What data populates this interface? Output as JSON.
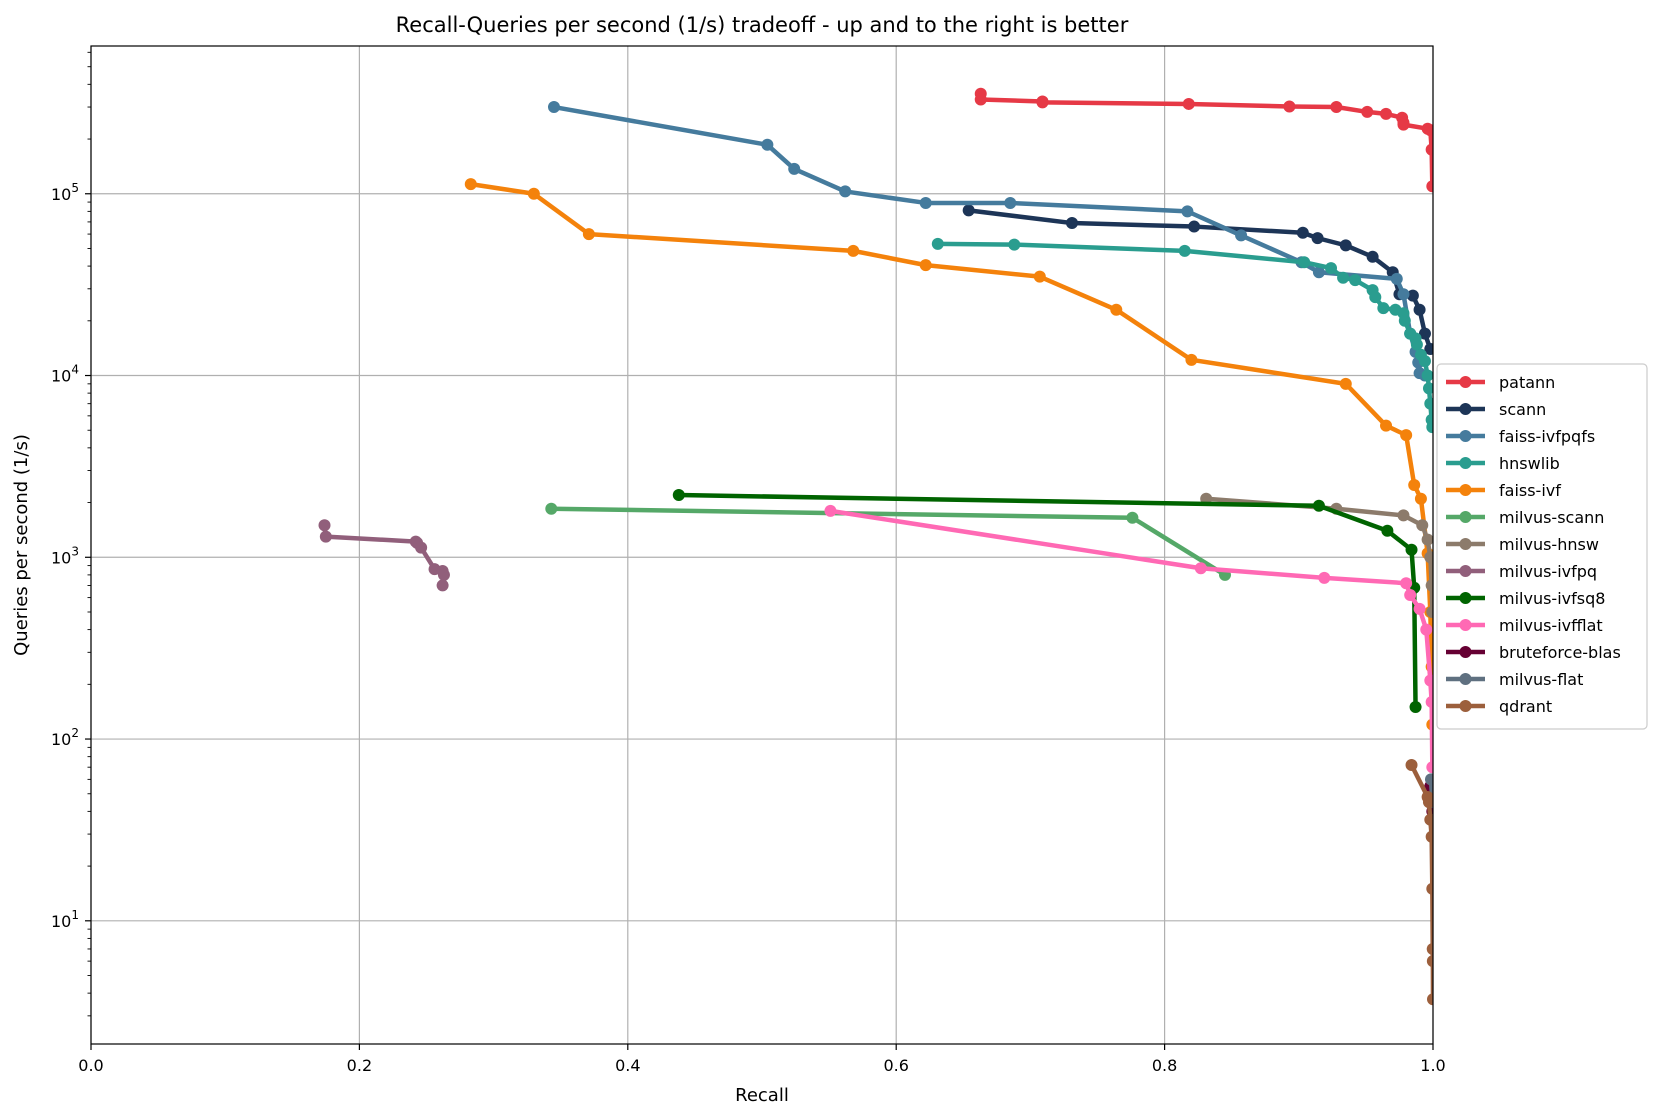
{
  "chart_data": {
    "type": "line",
    "title": "Recall-Queries per second (1/s) tradeoff - up and to the right is better",
    "xlabel": "Recall",
    "ylabel": "Queries per second (1/s)",
    "xlim": [
      0.0,
      1.0
    ],
    "ylim": [
      2.1,
      650000
    ],
    "y_scale": "log",
    "grid": true,
    "legend_position": "right",
    "x_ticks": [
      {
        "value": 0.0,
        "label": "0.0"
      },
      {
        "value": 0.2,
        "label": "0.2"
      },
      {
        "value": 0.4,
        "label": "0.4"
      },
      {
        "value": 0.6,
        "label": "0.6"
      },
      {
        "value": 0.8,
        "label": "0.8"
      },
      {
        "value": 1.0,
        "label": "1.0"
      }
    ],
    "y_ticks": [
      {
        "value": 10,
        "base": "10",
        "exp": "1"
      },
      {
        "value": 100,
        "base": "10",
        "exp": "2"
      },
      {
        "value": 1000,
        "base": "10",
        "exp": "3"
      },
      {
        "value": 10000,
        "base": "10",
        "exp": "4"
      },
      {
        "value": 100000,
        "base": "10",
        "exp": "5"
      }
    ],
    "series": [
      {
        "name": "patann",
        "color": "#e63946",
        "points": [
          [
            0.663,
            355000
          ],
          [
            0.663,
            330000
          ],
          [
            0.709,
            322000
          ],
          [
            0.709,
            318000
          ],
          [
            0.818,
            312000
          ],
          [
            0.893,
            302000
          ],
          [
            0.928,
            300000
          ],
          [
            0.951,
            282000
          ],
          [
            0.965,
            275000
          ],
          [
            0.977,
            262000
          ],
          [
            0.978,
            246000
          ],
          [
            0.978,
            240000
          ],
          [
            0.996,
            228000
          ],
          [
            0.998,
            224000
          ],
          [
            0.999,
            175000
          ],
          [
            0.9995,
            110000
          ]
        ]
      },
      {
        "name": "scann",
        "color": "#1d3557",
        "points": [
          [
            0.654,
            81000
          ],
          [
            0.731,
            69000
          ],
          [
            0.822,
            66000
          ],
          [
            0.903,
            61000
          ],
          [
            0.914,
            57000
          ],
          [
            0.935,
            52000
          ],
          [
            0.955,
            45000
          ],
          [
            0.97,
            37000
          ],
          [
            0.975,
            28000
          ],
          [
            0.985,
            27500
          ],
          [
            0.99,
            23000
          ],
          [
            0.994,
            17000
          ],
          [
            0.998,
            14000
          ]
        ]
      },
      {
        "name": "faiss-ivfpqfs",
        "color": "#457b9d",
        "points": [
          [
            0.345,
            300000
          ],
          [
            0.504,
            186000
          ],
          [
            0.524,
            137000
          ],
          [
            0.562,
            103000
          ],
          [
            0.622,
            89000
          ],
          [
            0.685,
            89000
          ],
          [
            0.817,
            80000
          ],
          [
            0.857,
            59000
          ],
          [
            0.902,
            42000
          ],
          [
            0.915,
            37000
          ],
          [
            0.973,
            34000
          ],
          [
            0.978,
            28000
          ],
          [
            0.983,
            17000
          ],
          [
            0.987,
            13500
          ],
          [
            0.989,
            11800
          ],
          [
            0.99,
            10300
          ],
          [
            0.994,
            10000
          ]
        ]
      },
      {
        "name": "hnswlib",
        "color": "#2a9d8f",
        "points": [
          [
            0.631,
            53000
          ],
          [
            0.688,
            52500
          ],
          [
            0.815,
            48500
          ],
          [
            0.904,
            42000
          ],
          [
            0.924,
            39000
          ],
          [
            0.933,
            34500
          ],
          [
            0.942,
            33500
          ],
          [
            0.955,
            29500
          ],
          [
            0.957,
            27000
          ],
          [
            0.963,
            23500
          ],
          [
            0.972,
            23000
          ],
          [
            0.978,
            22000
          ],
          [
            0.979,
            20000
          ],
          [
            0.983,
            17000
          ],
          [
            0.987,
            16000
          ],
          [
            0.988,
            14800
          ],
          [
            0.991,
            13000
          ],
          [
            0.994,
            12000
          ],
          [
            0.996,
            10000
          ],
          [
            0.997,
            8500
          ],
          [
            0.998,
            7000
          ],
          [
            0.999,
            5700
          ],
          [
            0.9995,
            5200
          ]
        ]
      },
      {
        "name": "faiss-ivf",
        "color": "#f4820b",
        "points": [
          [
            0.283,
            113000
          ],
          [
            0.33,
            100000
          ],
          [
            0.371,
            60000
          ],
          [
            0.568,
            48500
          ],
          [
            0.622,
            40500
          ],
          [
            0.707,
            35000
          ],
          [
            0.764,
            23000
          ],
          [
            0.82,
            12200
          ],
          [
            0.935,
            9000
          ],
          [
            0.965,
            5300
          ],
          [
            0.98,
            4700
          ],
          [
            0.986,
            2500
          ],
          [
            0.991,
            2100
          ],
          [
            0.996,
            1050
          ],
          [
            0.998,
            500
          ],
          [
            0.999,
            250
          ],
          [
            0.9995,
            120
          ]
        ]
      },
      {
        "name": "milvus-scann",
        "color": "#55a868",
        "points": [
          [
            0.343,
            1850
          ],
          [
            0.776,
            1650
          ],
          [
            0.845,
            800
          ]
        ]
      },
      {
        "name": "milvus-hnsw",
        "color": "#8c7b6b",
        "points": [
          [
            0.831,
            2100
          ],
          [
            0.928,
            1850
          ],
          [
            0.978,
            1700
          ],
          [
            0.992,
            1500
          ],
          [
            0.996,
            1250
          ],
          [
            0.998,
            1000
          ],
          [
            0.999,
            700
          ],
          [
            0.9995,
            500
          ]
        ]
      },
      {
        "name": "milvus-ivfpq",
        "color": "#915f7b",
        "points": [
          [
            0.174,
            1500
          ],
          [
            0.175,
            1300
          ],
          [
            0.242,
            1220
          ],
          [
            0.243,
            1200
          ],
          [
            0.246,
            1130
          ],
          [
            0.256,
            860
          ],
          [
            0.262,
            840
          ],
          [
            0.263,
            800
          ],
          [
            0.262,
            700
          ]
        ]
      },
      {
        "name": "milvus-ivfsq8",
        "color": "#006400",
        "points": [
          [
            0.438,
            2200
          ],
          [
            0.915,
            1920
          ],
          [
            0.966,
            1400
          ],
          [
            0.984,
            1100
          ],
          [
            0.986,
            680
          ],
          [
            0.987,
            150
          ]
        ]
      },
      {
        "name": "milvus-ivfflat",
        "color": "#ff69b4",
        "points": [
          [
            0.551,
            1800
          ],
          [
            0.827,
            870
          ],
          [
            0.919,
            770
          ],
          [
            0.98,
            720
          ],
          [
            0.983,
            620
          ],
          [
            0.99,
            520
          ],
          [
            0.995,
            400
          ],
          [
            0.998,
            210
          ],
          [
            0.999,
            160
          ],
          [
            0.9995,
            70
          ]
        ]
      },
      {
        "name": "bruteforce-blas",
        "color": "#660033",
        "points": [
          [
            0.998,
            55
          ],
          [
            0.9995,
            40
          ]
        ]
      },
      {
        "name": "milvus-flat",
        "color": "#5f7080",
        "points": [
          [
            0.9985,
            60
          ],
          [
            0.9995,
            45
          ]
        ]
      },
      {
        "name": "qdrant",
        "color": "#9c5f3c",
        "points": [
          [
            0.984,
            72
          ],
          [
            0.996,
            48
          ],
          [
            0.997,
            45
          ],
          [
            0.998,
            36
          ],
          [
            0.999,
            29
          ],
          [
            0.9995,
            15
          ],
          [
            0.9998,
            7
          ],
          [
            0.9999,
            6
          ],
          [
            1.0,
            3.7
          ]
        ]
      }
    ]
  }
}
